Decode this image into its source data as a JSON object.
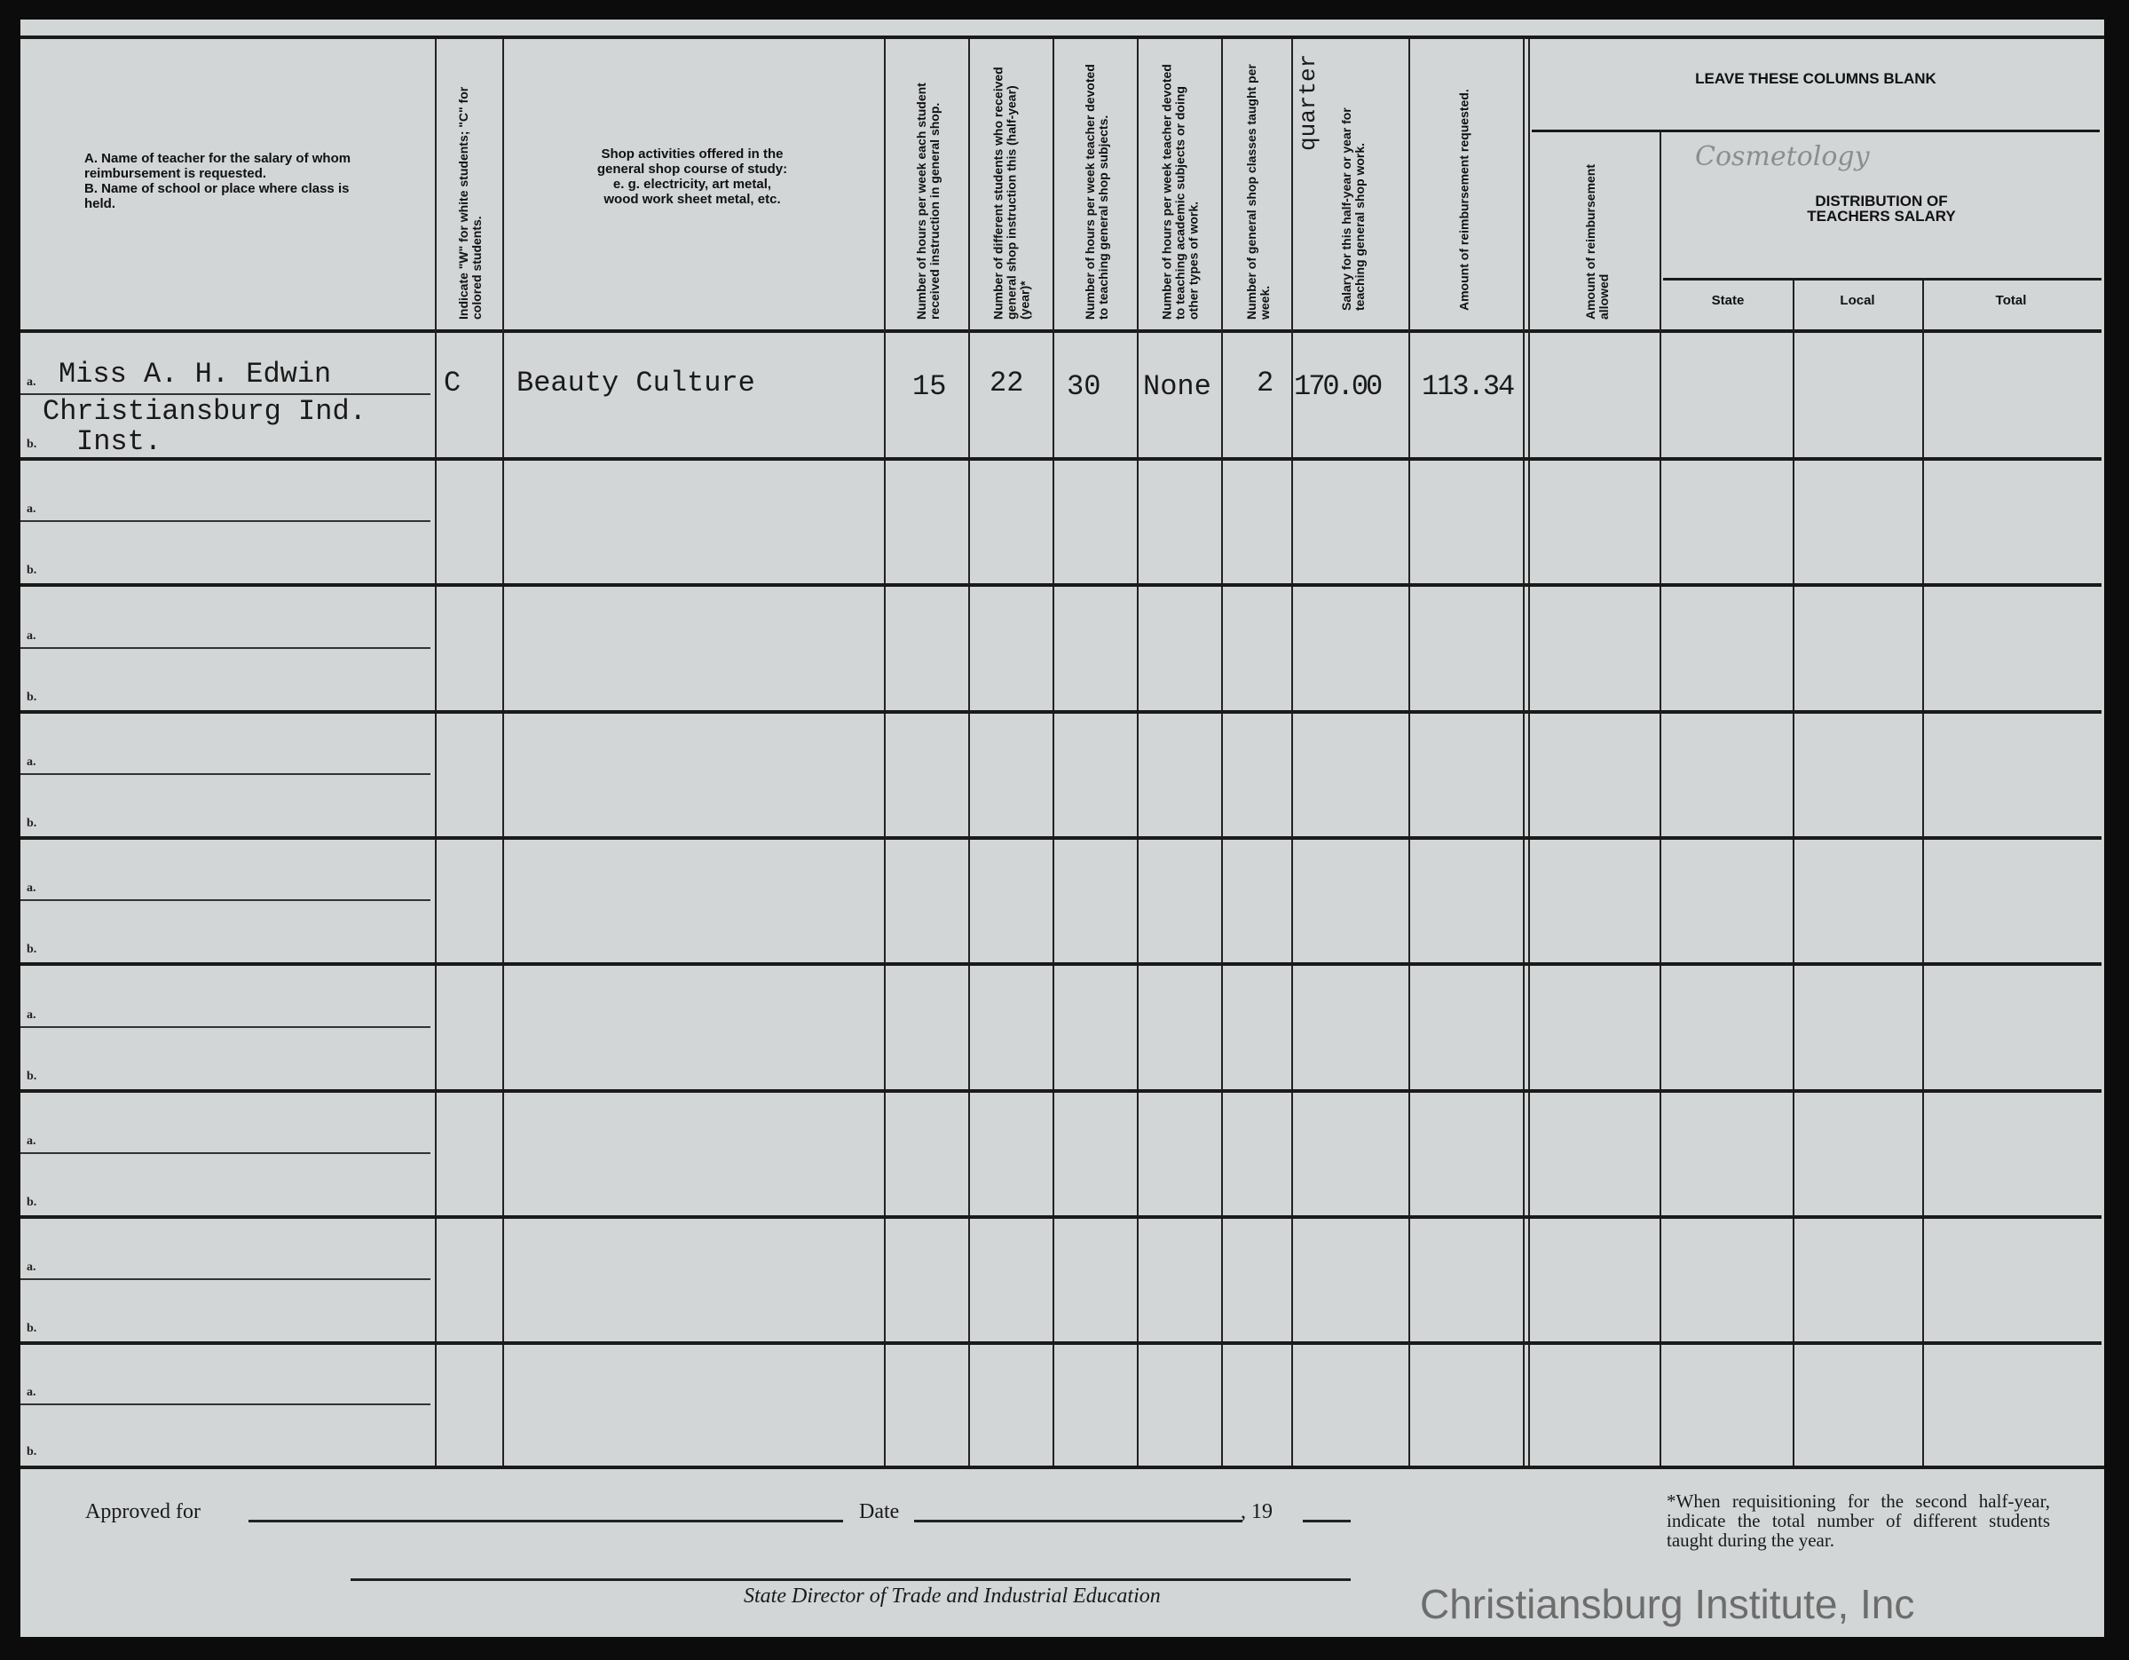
{
  "header": {
    "teacher_col": [
      "A.  Name of teacher for the salary of whom reimbursement is requested.",
      "B.  Name of school or place where class is held."
    ],
    "race_col": "Indicate \"W\" for white students; \"C\" for colored students.",
    "activities_col": "Shop activities offered in the general shop course of study: e. g. electricity, art metal, wood work sheet metal, etc.",
    "hours_student_col": "Number of hours per week each student received instruction in general shop.",
    "students_col": "Number of different students who received general shop instruction this (half-year) (year)*",
    "hours_shop_col": "Number of hours per week teacher devoted to teaching general shop subjects.",
    "hours_other_col": "Number of hours per week teacher devoted to teaching academic subjects or doing other types of work.",
    "classes_col": "Number of general shop classes taught per week.",
    "salary_col": "Salary for this half-year or year for teaching general shop work.",
    "salary_correction": "quarter",
    "reimb_col": "Amount of reimbursement requested.",
    "blank_title": "LEAVE THESE COLUMNS BLANK",
    "allowed_col": "Amount of reimbursement allowed",
    "distribution_title": "DISTRIBUTION OF TEACHERS SALARY",
    "handwritten_note": "Cosmetology",
    "state": "State",
    "local": "Local",
    "total": "Total"
  },
  "row_labels": {
    "a": "a.",
    "b": "b."
  },
  "entry": {
    "teacher": "Miss A. H. Edwin",
    "school_line1": "Christiansburg Ind.",
    "school_line2": "Inst.",
    "race": "C",
    "activity": "Beauty Culture",
    "hours_student": "15",
    "students": "22",
    "hours_shop": "30",
    "hours_other": "None",
    "classes": "2",
    "salary": "170.00",
    "reimbursement": "113.34"
  },
  "footer": {
    "approved_for": "Approved for",
    "date": "Date",
    "year_prefix": ", 19",
    "signature_title": "State Director of Trade and Industrial Education",
    "footnote": "*When requisitioning for the second half-year, indicate the total number of different students taught during the year."
  },
  "watermark": "Christiansburg Institute, Inc"
}
